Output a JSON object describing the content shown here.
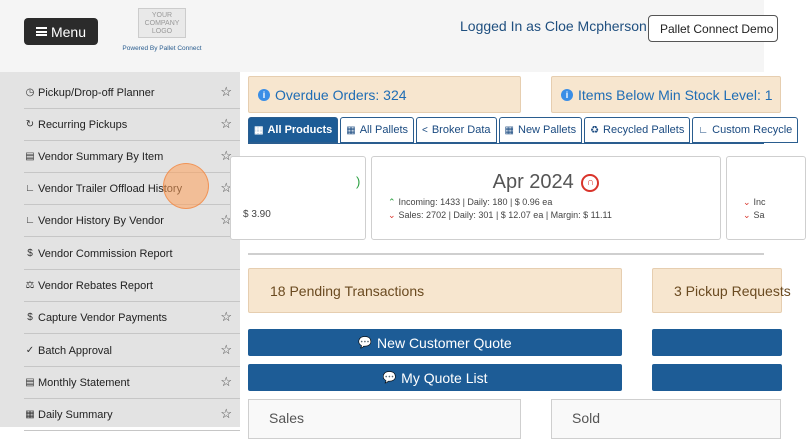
{
  "header": {
    "menu_label": "Menu",
    "logo_text": "YOUR COMPANY LOGO",
    "powered_by": "Powered By Pallet Connect",
    "logged_in": "Logged In as Cloe Mcpherson  |",
    "company_select": "Pallet Connect Demo"
  },
  "sidebar": {
    "items": [
      {
        "label": "Pickup/Drop-off Planner",
        "icon": "clock-icon"
      },
      {
        "label": "Recurring Pickups",
        "icon": "repeat-icon"
      },
      {
        "label": "Vendor Summary By Item",
        "icon": "pallet-icon"
      },
      {
        "label": "Vendor Trailer Offload History",
        "icon": "chart-icon"
      },
      {
        "label": "Vendor History By Vendor",
        "icon": "chart-icon"
      },
      {
        "label": "Vendor Commission Report",
        "icon": "dollar-icon"
      },
      {
        "label": "Vendor Rebates Report",
        "icon": "scale-icon"
      },
      {
        "label": "Capture Vendor Payments",
        "icon": "dollar-icon"
      },
      {
        "label": "Batch Approval",
        "icon": "check-icon"
      },
      {
        "label": "Monthly Statement",
        "icon": "list-icon"
      },
      {
        "label": "Daily Summary",
        "icon": "table-icon"
      }
    ]
  },
  "alerts": {
    "overdue": "Overdue Orders: 324",
    "min_stock": "Items Below Min Stock Level: 1"
  },
  "tabs": [
    {
      "label": "All Products"
    },
    {
      "label": "All Pallets"
    },
    {
      "label": "Broker Data"
    },
    {
      "label": "New Pallets"
    },
    {
      "label": "Recycled Pallets"
    },
    {
      "label": "Custom Recycle"
    }
  ],
  "cards": {
    "left_value": "$ 3.90",
    "month": "Apr 2024",
    "incoming": "Incoming: 1433 | Daily: 180 | $ 0.96 ea",
    "sales": "Sales: 2702 | Daily: 301 | $ 12.07 ea | Margin: $ 11.11",
    "right_incoming": "Inc",
    "right_sales": "Sa"
  },
  "pending": {
    "transactions": "18 Pending Transactions",
    "pickup": "3 Pickup Requests"
  },
  "buttons": {
    "new_quote": "New Customer Quote",
    "quote_list": "My Quote List"
  },
  "panels": {
    "sales": "Sales",
    "sold": "Sold"
  },
  "colors": {
    "primary": "#1d5c96",
    "alert_bg": "#f7e6cf",
    "sidebar_bg": "#e3e3e3",
    "up": "#2aa040",
    "down": "#d9342b"
  }
}
